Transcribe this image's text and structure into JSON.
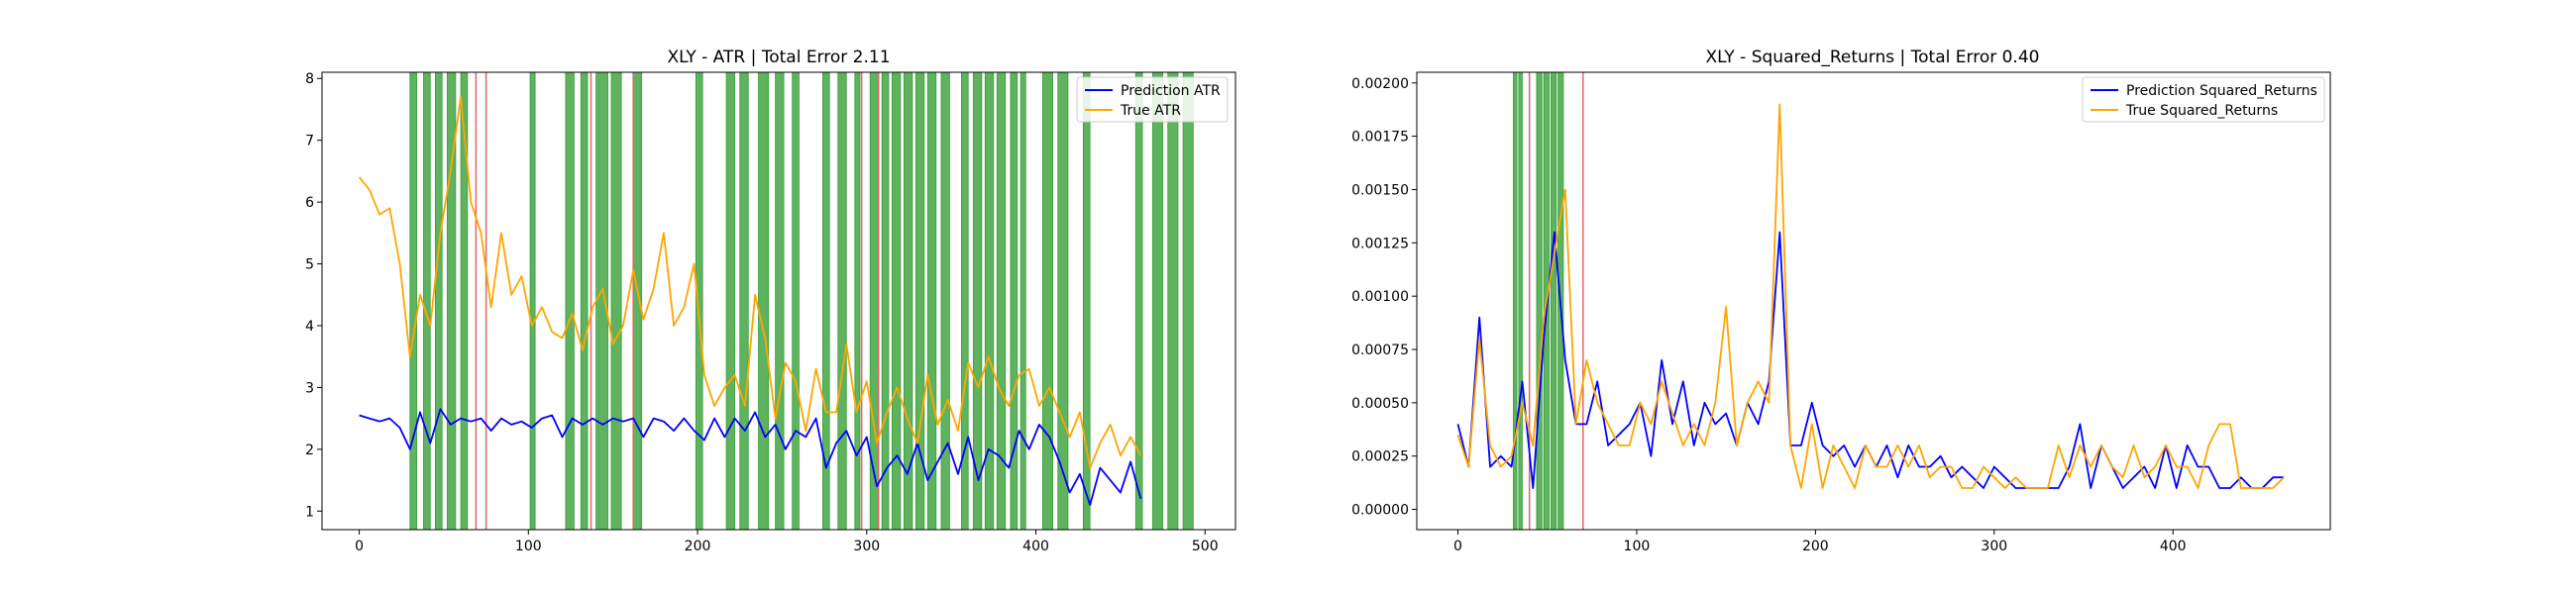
{
  "figure": {
    "background": "#ffffff"
  },
  "chart_data": [
    {
      "type": "line",
      "title": "XLY - ATR | Total Error 2.11",
      "xlabel": "",
      "ylabel": "",
      "xlim": [
        -22,
        518
      ],
      "ylim": [
        0.7,
        8.1
      ],
      "xticks": [
        0,
        100,
        200,
        300,
        400,
        500
      ],
      "yticks": [
        1,
        2,
        3,
        4,
        5,
        6,
        7,
        8
      ],
      "grid": false,
      "legend_position": "top-right",
      "series": [
        {
          "name": "Prediction ATR",
          "color": "#0000ff",
          "x0": 0,
          "step": 6,
          "values": [
            2.55,
            2.5,
            2.45,
            2.5,
            2.35,
            2.0,
            2.6,
            2.1,
            2.65,
            2.4,
            2.5,
            2.45,
            2.5,
            2.3,
            2.5,
            2.4,
            2.45,
            2.35,
            2.5,
            2.55,
            2.2,
            2.5,
            2.4,
            2.5,
            2.4,
            2.5,
            2.45,
            2.5,
            2.2,
            2.5,
            2.45,
            2.3,
            2.5,
            2.3,
            2.15,
            2.5,
            2.2,
            2.5,
            2.3,
            2.6,
            2.2,
            2.4,
            2.0,
            2.3,
            2.2,
            2.5,
            1.7,
            2.1,
            2.3,
            1.9,
            2.2,
            1.4,
            1.7,
            1.9,
            1.6,
            2.1,
            1.5,
            1.8,
            2.1,
            1.6,
            2.2,
            1.5,
            2.0,
            1.9,
            1.7,
            2.3,
            2.0,
            2.4,
            2.2,
            1.8,
            1.3,
            1.6,
            1.1,
            1.7,
            1.5,
            1.3,
            1.8,
            1.2
          ]
        },
        {
          "name": "True ATR",
          "color": "#ffa500",
          "x0": 0,
          "step": 6,
          "values": [
            6.4,
            6.2,
            5.8,
            5.9,
            5.0,
            3.5,
            4.5,
            4.0,
            5.5,
            6.5,
            7.7,
            6.0,
            5.5,
            4.3,
            5.5,
            4.5,
            4.8,
            4.0,
            4.3,
            3.9,
            3.8,
            4.2,
            3.6,
            4.3,
            4.6,
            3.7,
            4.0,
            4.9,
            4.1,
            4.6,
            5.5,
            4.0,
            4.3,
            5.0,
            3.2,
            2.7,
            3.0,
            3.2,
            2.7,
            4.5,
            3.8,
            2.5,
            3.4,
            3.1,
            2.3,
            3.3,
            2.6,
            2.6,
            3.7,
            2.6,
            3.1,
            2.1,
            2.6,
            3.0,
            2.5,
            2.1,
            3.2,
            2.4,
            2.8,
            2.3,
            3.4,
            3.0,
            3.5,
            3.0,
            2.7,
            3.2,
            3.3,
            2.7,
            3.0,
            2.6,
            2.2,
            2.6,
            1.7,
            2.1,
            2.4,
            1.9,
            2.2,
            1.9
          ]
        }
      ],
      "green_bands": [
        [
          30,
          34
        ],
        [
          38,
          42
        ],
        [
          45,
          49
        ],
        [
          52,
          57
        ],
        [
          60,
          64
        ],
        [
          101,
          104
        ],
        [
          122,
          127
        ],
        [
          131,
          135
        ],
        [
          140,
          147
        ],
        [
          149,
          155
        ],
        [
          162,
          167
        ],
        [
          199,
          203
        ],
        [
          217,
          222
        ],
        [
          225,
          230
        ],
        [
          236,
          242
        ],
        [
          246,
          251
        ],
        [
          256,
          260
        ],
        [
          274,
          278
        ],
        [
          283,
          288
        ],
        [
          293,
          296
        ],
        [
          302,
          307
        ],
        [
          309,
          313
        ],
        [
          315,
          320
        ],
        [
          322,
          327
        ],
        [
          329,
          334
        ],
        [
          336,
          341
        ],
        [
          344,
          349
        ],
        [
          356,
          360
        ],
        [
          363,
          368
        ],
        [
          370,
          375
        ],
        [
          377,
          382
        ],
        [
          385,
          389
        ],
        [
          391,
          394
        ],
        [
          404,
          410
        ],
        [
          413,
          419
        ],
        [
          428,
          432
        ],
        [
          459,
          463
        ],
        [
          469,
          475
        ],
        [
          478,
          484
        ],
        [
          487,
          493
        ]
      ],
      "red_lines": [
        69,
        75,
        137,
        162,
        297,
        307
      ],
      "band_color": "#2a9a2a",
      "red_line_color": "#e06666"
    },
    {
      "type": "line",
      "title": "XLY - Squared_Returns | Total Error 0.40",
      "xlabel": "",
      "ylabel": "",
      "xlim": [
        -23,
        488
      ],
      "ylim": [
        -9.5e-05,
        0.00205
      ],
      "xticks": [
        0,
        100,
        200,
        300,
        400
      ],
      "yticks": [
        "0.00000",
        "0.00025",
        "0.00050",
        "0.00075",
        "0.00100",
        "0.00125",
        "0.00150",
        "0.00175",
        "0.00200"
      ],
      "grid": false,
      "legend_position": "top-right",
      "series": [
        {
          "name": "Prediction Squared_Returns",
          "color": "#0000ff",
          "x0": 0,
          "step": 6,
          "values": [
            0.0004,
            0.0002,
            0.0009,
            0.0002,
            0.00025,
            0.0002,
            0.0006,
            0.0001,
            0.0008,
            0.0013,
            0.0007,
            0.0004,
            0.0004,
            0.0006,
            0.0003,
            0.00035,
            0.0004,
            0.0005,
            0.00025,
            0.0007,
            0.0004,
            0.0006,
            0.0003,
            0.0005,
            0.0004,
            0.00045,
            0.0003,
            0.0005,
            0.0004,
            0.0006,
            0.0013,
            0.0003,
            0.0003,
            0.0005,
            0.0003,
            0.00025,
            0.0003,
            0.0002,
            0.0003,
            0.0002,
            0.0003,
            0.00015,
            0.0003,
            0.0002,
            0.0002,
            0.00025,
            0.00015,
            0.0002,
            0.00015,
            0.0001,
            0.0002,
            0.00015,
            0.0001,
            0.0001,
            0.0001,
            0.0001,
            0.0001,
            0.0002,
            0.0004,
            0.0001,
            0.0003,
            0.0002,
            0.0001,
            0.00015,
            0.0002,
            0.0001,
            0.0003,
            0.0001,
            0.0003,
            0.0002,
            0.0002,
            0.0001,
            0.0001,
            0.00015,
            0.0001,
            0.0001,
            0.00015,
            0.00015
          ]
        },
        {
          "name": "True Squared_Returns",
          "color": "#ffa500",
          "x0": 0,
          "step": 6,
          "values": [
            0.00035,
            0.0002,
            0.0008,
            0.0003,
            0.0002,
            0.00025,
            0.0005,
            0.0003,
            0.0009,
            0.0012,
            0.0015,
            0.0004,
            0.0007,
            0.0005,
            0.0004,
            0.0003,
            0.0003,
            0.0005,
            0.0004,
            0.0006,
            0.00045,
            0.0003,
            0.0004,
            0.0003,
            0.0005,
            0.00095,
            0.0003,
            0.0005,
            0.0006,
            0.0005,
            0.0019,
            0.0003,
            0.0001,
            0.0004,
            0.0001,
            0.0003,
            0.0002,
            0.0001,
            0.0003,
            0.0002,
            0.0002,
            0.0003,
            0.0002,
            0.0003,
            0.00015,
            0.0002,
            0.0002,
            0.0001,
            0.0001,
            0.0002,
            0.00015,
            0.0001,
            0.00015,
            0.0001,
            0.0001,
            0.0001,
            0.0003,
            0.00015,
            0.0003,
            0.0002,
            0.0003,
            0.0002,
            0.00015,
            0.0003,
            0.00015,
            0.0002,
            0.0003,
            0.0002,
            0.0002,
            0.0001,
            0.0003,
            0.0004,
            0.0004,
            0.0001,
            0.0001,
            0.0001,
            0.0001,
            0.00015
          ]
        }
      ],
      "green_bands": [
        [
          31,
          33
        ],
        [
          34,
          36
        ],
        [
          44,
          47
        ],
        [
          48,
          51
        ],
        [
          52,
          55
        ],
        [
          56,
          59
        ]
      ],
      "red_lines": [
        40,
        70
      ],
      "band_color": "#2a9a2a",
      "red_line_color": "#e06666"
    }
  ]
}
